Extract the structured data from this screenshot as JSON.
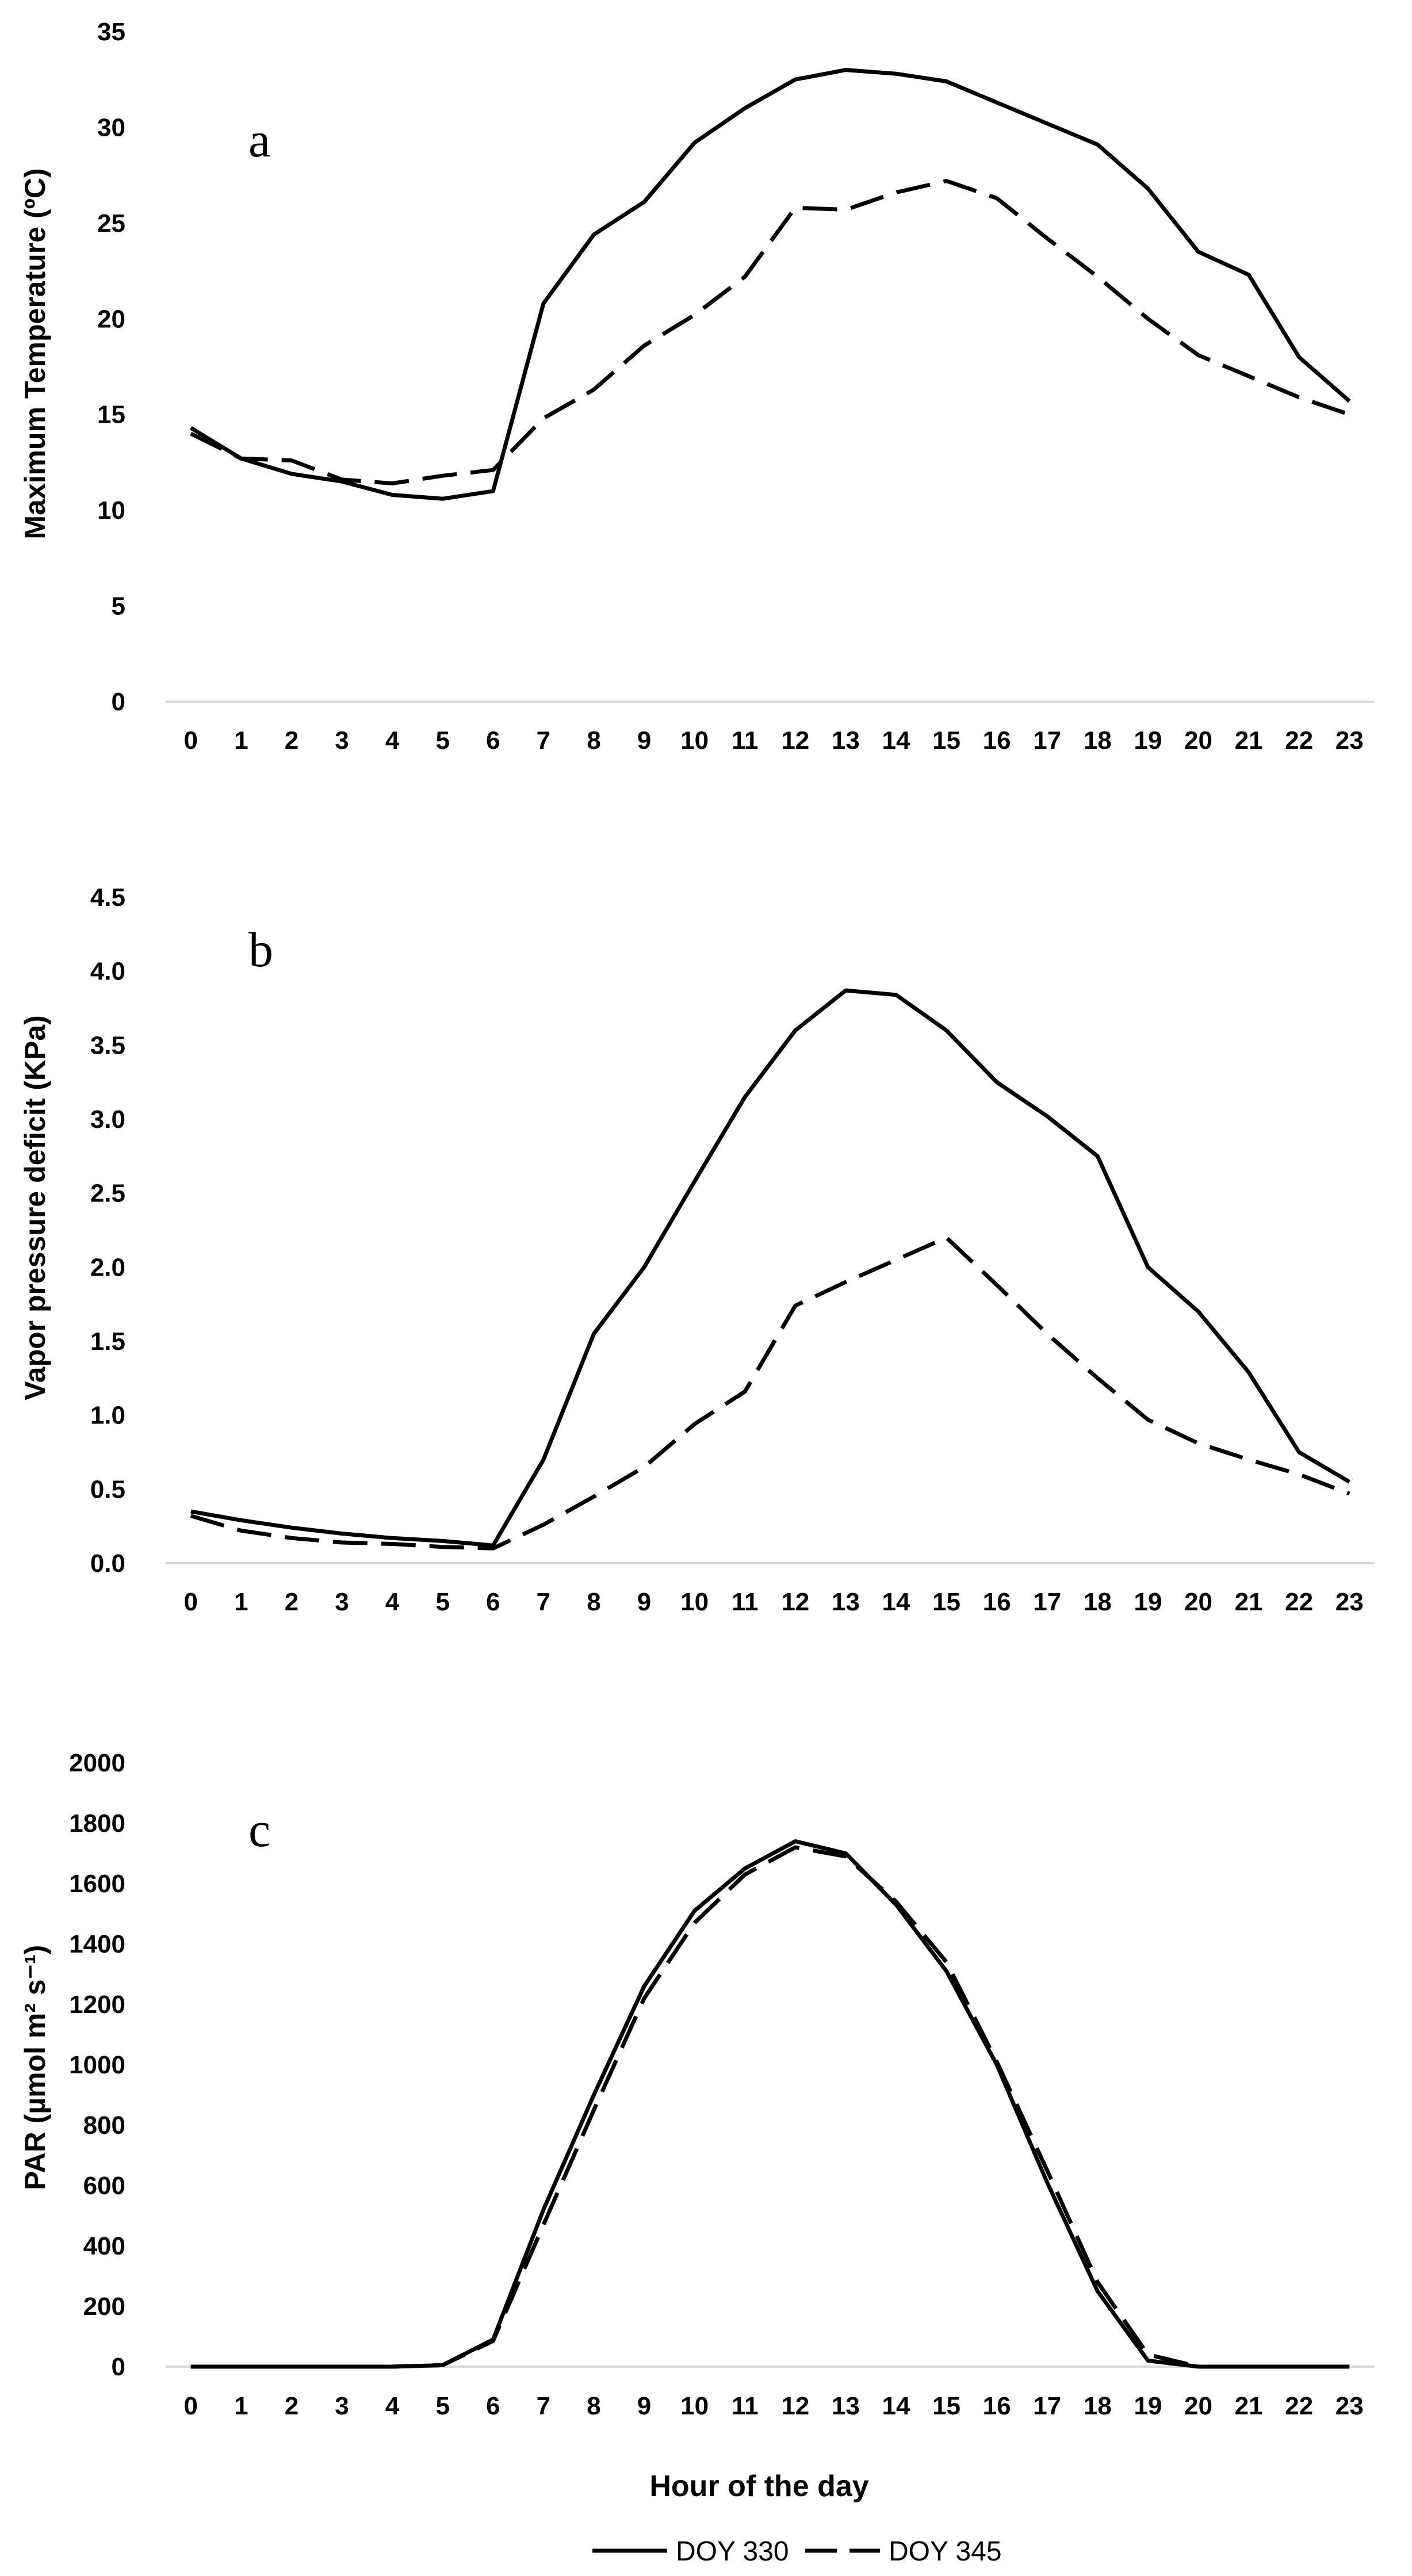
{
  "chart_data": [
    {
      "type": "line",
      "panel_label": "a",
      "ylabel": "Maximum Temperature (ºC)",
      "ylim": [
        0,
        35
      ],
      "yticks": [
        0,
        5,
        10,
        15,
        20,
        25,
        30,
        35
      ],
      "categories": [
        "0",
        "1",
        "2",
        "3",
        "4",
        "5",
        "6",
        "7",
        "8",
        "9",
        "10",
        "11",
        "12",
        "13",
        "14",
        "15",
        "16",
        "17",
        "18",
        "19",
        "20",
        "21",
        "22",
        "23"
      ],
      "series": [
        {
          "name": "DOY 330",
          "style": "solid",
          "values": [
            14.3,
            12.7,
            11.9,
            11.5,
            10.8,
            10.6,
            11.0,
            20.8,
            24.4,
            26.1,
            29.2,
            31.0,
            32.5,
            33.0,
            32.8,
            32.4,
            31.3,
            30.2,
            29.1,
            26.8,
            23.5,
            22.3,
            18.0,
            15.7
          ]
        },
        {
          "name": "DOY 345",
          "style": "dashed",
          "values": [
            14.0,
            12.7,
            12.6,
            11.6,
            11.4,
            11.8,
            12.1,
            14.8,
            16.3,
            18.6,
            20.2,
            22.2,
            25.8,
            25.7,
            26.6,
            27.2,
            26.3,
            24.2,
            22.2,
            20.0,
            18.1,
            17.0,
            15.9,
            15.0
          ]
        }
      ]
    },
    {
      "type": "line",
      "panel_label": "b",
      "ylabel": "Vapor pressure deficit (KPa)",
      "ylim": [
        0,
        4.5
      ],
      "yticks": [
        "0.0",
        "0.5",
        "1.0",
        "1.5",
        "2.0",
        "2.5",
        "3.0",
        "3.5",
        "4.0",
        "4.5"
      ],
      "categories": [
        "0",
        "1",
        "2",
        "3",
        "4",
        "5",
        "6",
        "7",
        "8",
        "9",
        "10",
        "11",
        "12",
        "13",
        "14",
        "15",
        "16",
        "17",
        "18",
        "19",
        "20",
        "21",
        "22",
        "23"
      ],
      "series": [
        {
          "name": "DOY 330",
          "style": "solid",
          "values": [
            0.35,
            0.29,
            0.24,
            0.2,
            0.17,
            0.15,
            0.12,
            0.7,
            1.55,
            2.0,
            2.58,
            3.15,
            3.6,
            3.87,
            3.84,
            3.6,
            3.25,
            3.02,
            2.75,
            2.0,
            1.7,
            1.29,
            0.75,
            0.55
          ]
        },
        {
          "name": "DOY 345",
          "style": "dashed",
          "values": [
            0.32,
            0.22,
            0.17,
            0.14,
            0.13,
            0.11,
            0.1,
            0.26,
            0.45,
            0.65,
            0.94,
            1.16,
            1.74,
            1.9,
            2.05,
            2.2,
            1.88,
            1.55,
            1.25,
            0.97,
            0.81,
            0.7,
            0.6,
            0.47
          ]
        }
      ]
    },
    {
      "type": "line",
      "panel_label": "c",
      "ylabel": "PAR (µmol m² s⁻¹)",
      "ylim": [
        0,
        2000
      ],
      "yticks": [
        0,
        200,
        400,
        600,
        800,
        1000,
        1200,
        1400,
        1600,
        1800,
        2000
      ],
      "categories": [
        "0",
        "1",
        "2",
        "3",
        "4",
        "5",
        "6",
        "7",
        "8",
        "9",
        "10",
        "11",
        "12",
        "13",
        "14",
        "15",
        "16",
        "17",
        "18",
        "19",
        "20",
        "21",
        "22",
        "23"
      ],
      "series": [
        {
          "name": "DOY 330",
          "style": "solid",
          "values": [
            0,
            0,
            0,
            0,
            0,
            5,
            90,
            520,
            900,
            1260,
            1510,
            1650,
            1740,
            1700,
            1530,
            1310,
            1000,
            610,
            250,
            20,
            0,
            0,
            0,
            0
          ]
        },
        {
          "name": "DOY 345",
          "style": "dashed",
          "values": [
            0,
            0,
            0,
            0,
            0,
            5,
            85,
            470,
            850,
            1220,
            1470,
            1630,
            1720,
            1690,
            1540,
            1340,
            1010,
            650,
            280,
            40,
            0,
            0,
            0,
            0
          ]
        }
      ],
      "xlabel": "Hour of the day"
    }
  ],
  "legend": {
    "position": "bottom-center",
    "entries": [
      {
        "label": "DOY 330",
        "style": "solid"
      },
      {
        "label": "DOY 345",
        "style": "dashed"
      }
    ]
  },
  "colors": {
    "line": "#000000",
    "axis": "#d9d9d9",
    "background": "#ffffff"
  }
}
